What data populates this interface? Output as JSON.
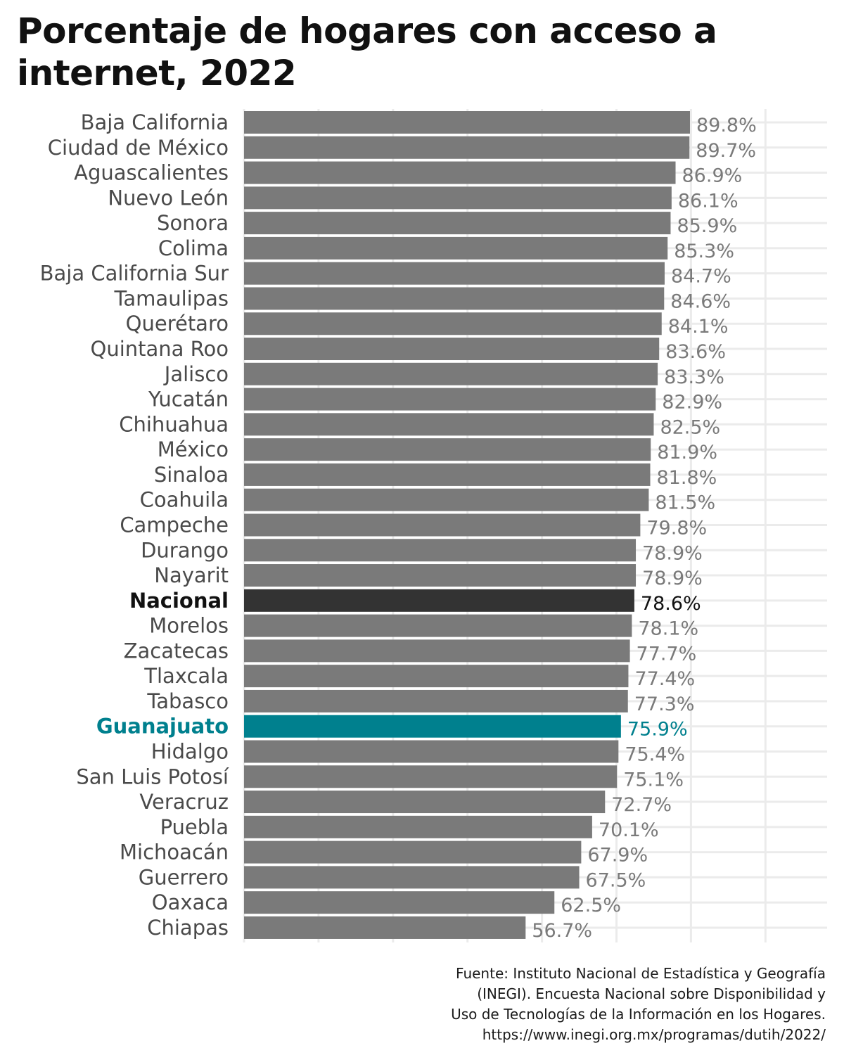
{
  "chart_data": {
    "type": "bar",
    "orientation": "horizontal",
    "title": "Porcentaje de hogares con acceso a internet, 2022",
    "xlabel": "",
    "ylabel": "",
    "xlim": [
      0,
      100
    ],
    "grid": true,
    "value_suffix": "%",
    "categories": [
      "Baja California",
      "Ciudad de México",
      "Aguascalientes",
      "Nuevo León",
      "Sonora",
      "Colima",
      "Baja California Sur",
      "Tamaulipas",
      "Querétaro",
      "Quintana Roo",
      "Jalisco",
      "Yucatán",
      "Chihuahua",
      "México",
      "Sinaloa",
      "Coahuila",
      "Campeche",
      "Durango",
      "Nayarit",
      "Nacional",
      "Morelos",
      "Zacatecas",
      "Tlaxcala",
      "Tabasco",
      "Guanajuato",
      "Hidalgo",
      "San Luis Potosí",
      "Veracruz",
      "Puebla",
      "Michoacán",
      "Guerrero",
      "Oaxaca",
      "Chiapas"
    ],
    "values": [
      89.8,
      89.7,
      86.9,
      86.1,
      85.9,
      85.3,
      84.7,
      84.6,
      84.1,
      83.6,
      83.3,
      82.9,
      82.5,
      81.9,
      81.8,
      81.5,
      79.8,
      78.9,
      78.9,
      78.6,
      78.1,
      77.7,
      77.4,
      77.3,
      75.9,
      75.4,
      75.1,
      72.7,
      70.1,
      67.9,
      67.5,
      62.5,
      56.7
    ],
    "value_labels": [
      "89.8%",
      "89.7%",
      "86.9%",
      "86.1%",
      "85.9%",
      "85.3%",
      "84.7%",
      "84.6%",
      "84.1%",
      "83.6%",
      "83.3%",
      "82.9%",
      "82.5%",
      "81.9%",
      "81.8%",
      "81.5%",
      "79.8%",
      "78.9%",
      "78.9%",
      "78.6%",
      "78.1%",
      "77.7%",
      "77.4%",
      "77.3%",
      "75.9%",
      "75.4%",
      "75.1%",
      "72.7%",
      "70.1%",
      "67.9%",
      "67.5%",
      "62.5%",
      "56.7%"
    ],
    "highlights": {
      "Nacional": "national",
      "Guanajuato": "state"
    },
    "colors": {
      "default_bar": "#7a7a7a",
      "default_label": "#4a4a4a",
      "default_value": "#7a7a7a",
      "national_bar": "#333333",
      "national_label": "#111111",
      "state_bar": "#00808e",
      "state_label": "#00808e",
      "grid": "#ebebeb",
      "background": "#ffffff"
    }
  },
  "source": {
    "lines": [
      "Fuente: Instituto Nacional de Estadística y Geografía",
      "(INEGI). Encuesta Nacional sobre Disponibilidad y",
      "Uso de Tecnologías de la Información en los Hogares.",
      "https://www.inegi.org.mx/programas/dutih/2022/"
    ]
  }
}
